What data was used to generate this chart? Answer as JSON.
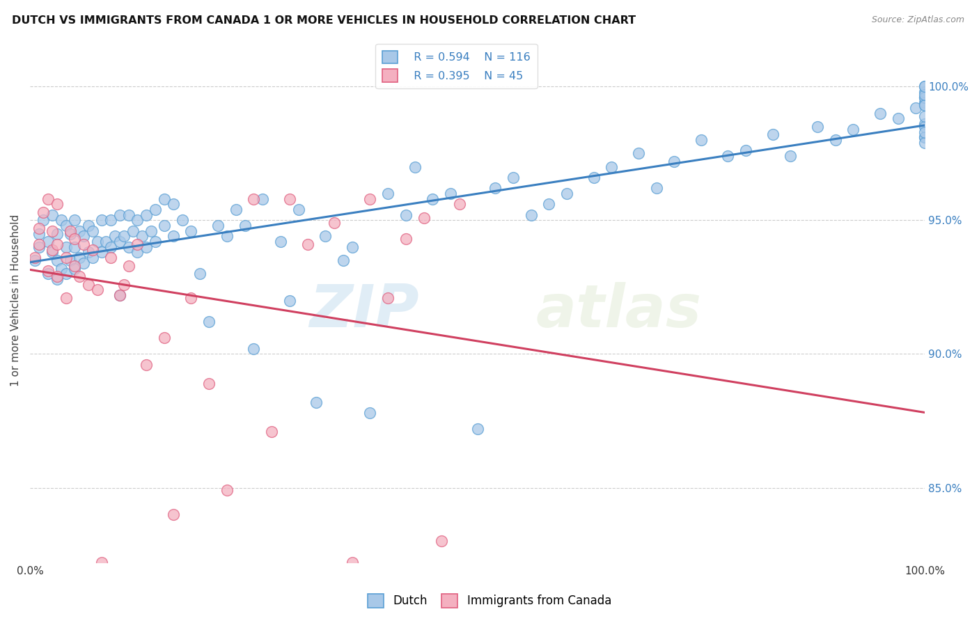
{
  "title": "DUTCH VS IMMIGRANTS FROM CANADA 1 OR MORE VEHICLES IN HOUSEHOLD CORRELATION CHART",
  "source": "Source: ZipAtlas.com",
  "ylabel": "1 or more Vehicles in Household",
  "ytick_labels": [
    "85.0%",
    "90.0%",
    "95.0%",
    "100.0%"
  ],
  "ytick_values": [
    0.85,
    0.9,
    0.95,
    1.0
  ],
  "legend_dutch_R": "R = 0.594",
  "legend_dutch_N": "N = 116",
  "legend_canada_R": "R = 0.395",
  "legend_canada_N": "N = 45",
  "dutch_face_color": "#a8c8e8",
  "canada_face_color": "#f4b0c0",
  "dutch_edge_color": "#5a9fd4",
  "canada_edge_color": "#e06080",
  "dutch_line_color": "#3a7fc0",
  "canada_line_color": "#d04060",
  "watermark_zip": "ZIP",
  "watermark_atlas": "atlas",
  "dutch_scatter_x": [
    0.005,
    0.01,
    0.01,
    0.015,
    0.02,
    0.02,
    0.025,
    0.025,
    0.03,
    0.03,
    0.03,
    0.035,
    0.035,
    0.04,
    0.04,
    0.04,
    0.045,
    0.045,
    0.05,
    0.05,
    0.05,
    0.055,
    0.055,
    0.06,
    0.06,
    0.065,
    0.065,
    0.07,
    0.07,
    0.075,
    0.08,
    0.08,
    0.085,
    0.09,
    0.09,
    0.095,
    0.1,
    0.1,
    0.1,
    0.105,
    0.11,
    0.11,
    0.115,
    0.12,
    0.12,
    0.125,
    0.13,
    0.13,
    0.135,
    0.14,
    0.14,
    0.15,
    0.15,
    0.16,
    0.16,
    0.17,
    0.18,
    0.19,
    0.2,
    0.21,
    0.22,
    0.23,
    0.24,
    0.25,
    0.26,
    0.28,
    0.29,
    0.3,
    0.32,
    0.33,
    0.35,
    0.36,
    0.38,
    0.4,
    0.42,
    0.43,
    0.45,
    0.47,
    0.5,
    0.52,
    0.54,
    0.56,
    0.58,
    0.6,
    0.63,
    0.65,
    0.68,
    0.7,
    0.72,
    0.75,
    0.78,
    0.8,
    0.83,
    0.85,
    0.88,
    0.9,
    0.92,
    0.95,
    0.97,
    0.99,
    1.0,
    1.0,
    1.0,
    1.0,
    1.0,
    1.0,
    1.0,
    1.0,
    1.0,
    1.0,
    1.0,
    1.0,
    1.0,
    1.0,
    1.0,
    1.0
  ],
  "dutch_scatter_y": [
    0.935,
    0.94,
    0.945,
    0.95,
    0.93,
    0.942,
    0.938,
    0.952,
    0.928,
    0.935,
    0.945,
    0.932,
    0.95,
    0.93,
    0.94,
    0.948,
    0.935,
    0.945,
    0.932,
    0.94,
    0.95,
    0.936,
    0.946,
    0.934,
    0.944,
    0.938,
    0.948,
    0.936,
    0.946,
    0.942,
    0.938,
    0.95,
    0.942,
    0.94,
    0.95,
    0.944,
    0.922,
    0.942,
    0.952,
    0.944,
    0.94,
    0.952,
    0.946,
    0.938,
    0.95,
    0.944,
    0.94,
    0.952,
    0.946,
    0.942,
    0.954,
    0.948,
    0.958,
    0.944,
    0.956,
    0.95,
    0.946,
    0.93,
    0.912,
    0.948,
    0.944,
    0.954,
    0.948,
    0.902,
    0.958,
    0.942,
    0.92,
    0.954,
    0.882,
    0.944,
    0.935,
    0.94,
    0.878,
    0.96,
    0.952,
    0.97,
    0.958,
    0.96,
    0.872,
    0.962,
    0.966,
    0.952,
    0.956,
    0.96,
    0.966,
    0.97,
    0.975,
    0.962,
    0.972,
    0.98,
    0.974,
    0.976,
    0.982,
    0.974,
    0.985,
    0.98,
    0.984,
    0.99,
    0.988,
    0.992,
    0.994,
    0.996,
    0.981,
    0.986,
    0.998,
    0.993,
    0.996,
    1.0,
    0.981,
    0.985,
    0.989,
    0.993,
    0.997,
    1.0,
    0.979,
    0.983
  ],
  "canada_scatter_x": [
    0.005,
    0.01,
    0.01,
    0.015,
    0.02,
    0.02,
    0.025,
    0.025,
    0.03,
    0.03,
    0.03,
    0.04,
    0.04,
    0.045,
    0.05,
    0.05,
    0.055,
    0.06,
    0.065,
    0.07,
    0.075,
    0.08,
    0.09,
    0.1,
    0.105,
    0.11,
    0.12,
    0.13,
    0.15,
    0.16,
    0.18,
    0.2,
    0.22,
    0.25,
    0.27,
    0.29,
    0.31,
    0.34,
    0.36,
    0.38,
    0.4,
    0.42,
    0.44,
    0.46,
    0.48
  ],
  "canada_scatter_y": [
    0.936,
    0.941,
    0.947,
    0.953,
    0.958,
    0.931,
    0.939,
    0.946,
    0.956,
    0.929,
    0.941,
    0.921,
    0.936,
    0.946,
    0.933,
    0.943,
    0.929,
    0.941,
    0.926,
    0.939,
    0.924,
    0.822,
    0.936,
    0.922,
    0.926,
    0.933,
    0.941,
    0.896,
    0.906,
    0.84,
    0.921,
    0.889,
    0.849,
    0.958,
    0.871,
    0.958,
    0.941,
    0.949,
    0.822,
    0.958,
    0.921,
    0.943,
    0.951,
    0.83,
    0.956
  ]
}
